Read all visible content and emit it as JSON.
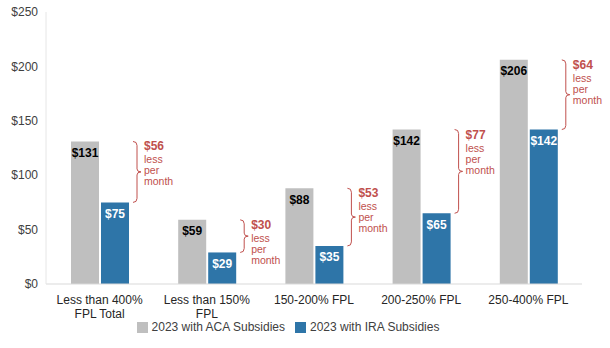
{
  "chart_data": {
    "type": "bar",
    "categories": [
      "Less than 400% FPL Total",
      "Less than 150% FPL",
      "150-200% FPL",
      "200-250% FPL",
      "250-400% FPL"
    ],
    "series": [
      {
        "name": "2023 with ACA Subsidies",
        "color": "#bfbfbf",
        "values": [
          131,
          59,
          88,
          142,
          206
        ],
        "value_labels": [
          "$131",
          "$59",
          "$88",
          "$142",
          "$206"
        ]
      },
      {
        "name": "2023 with IRA Subsidies",
        "color": "#2e75a8",
        "values": [
          75,
          29,
          35,
          65,
          142
        ],
        "value_labels": [
          "$75",
          "$29",
          "$35",
          "$65",
          "$142"
        ]
      }
    ],
    "ylim": [
      0,
      250
    ],
    "yticks": [
      {
        "value": 0,
        "label": "$0"
      },
      {
        "value": 50,
        "label": "$50"
      },
      {
        "value": 100,
        "label": "$100"
      },
      {
        "value": 150,
        "label": "$150"
      },
      {
        "value": 200,
        "label": "$200"
      },
      {
        "value": 250,
        "label": "$250"
      }
    ],
    "grid": false,
    "legend": "bottom",
    "data_labels": true,
    "annotations": [
      {
        "category": "Less than 400% FPL Total",
        "text": "$56 less per month",
        "color": "#c0504d"
      },
      {
        "category": "Less than 150% FPL",
        "text": "$30 less per month",
        "color": "#c0504d"
      },
      {
        "category": "150-200% FPL",
        "text": "$53 less per month",
        "color": "#c0504d"
      },
      {
        "category": "200-250% FPL",
        "text": "$77 less per month",
        "color": "#c0504d"
      },
      {
        "category": "250-400% FPL",
        "text": "$64 less per month",
        "color": "#c0504d"
      }
    ]
  }
}
